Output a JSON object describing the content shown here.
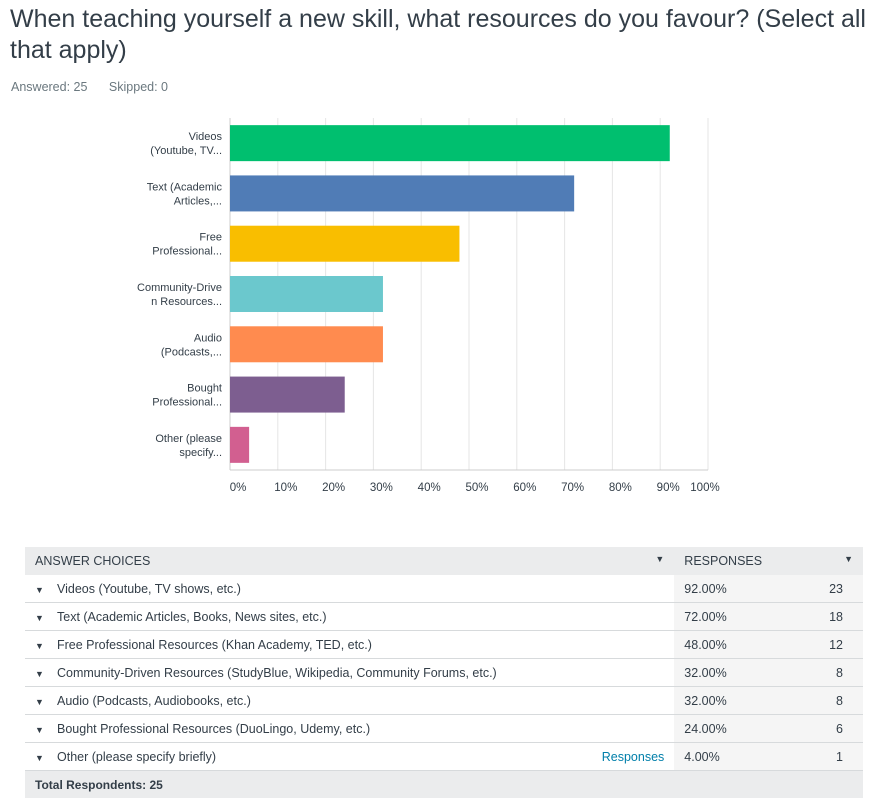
{
  "question": {
    "title": "When teaching yourself a new skill, what resources do you favour? (Select all that apply)",
    "answered": "Answered: 25",
    "skipped": "Skipped: 0"
  },
  "chart_data": {
    "type": "bar",
    "orientation": "horizontal",
    "title": "",
    "xlabel": "",
    "ylabel": "",
    "xlim": [
      0,
      100
    ],
    "grid": true,
    "x_ticks": [
      "0%",
      "10%",
      "20%",
      "30%",
      "40%",
      "50%",
      "60%",
      "70%",
      "80%",
      "90%",
      "100%"
    ],
    "categories": [
      [
        "Videos",
        "(Youtube, TV..."
      ],
      [
        "Text (Academic",
        "Articles,..."
      ],
      [
        "Free",
        "Professional..."
      ],
      [
        "Community-Drive",
        "n Resources..."
      ],
      [
        "Audio",
        "(Podcasts,..."
      ],
      [
        "Bought",
        "Professional..."
      ],
      [
        "Other (please",
        "specify..."
      ]
    ],
    "values": [
      92,
      72,
      48,
      32,
      32,
      24,
      4
    ],
    "colors": [
      "#00bf6f",
      "#507cb6",
      "#f9be00",
      "#6bc8cd",
      "#ff8b4f",
      "#7d5e90",
      "#d25f90"
    ]
  },
  "table": {
    "header_choices": "ANSWER CHOICES",
    "header_responses": "RESPONSES",
    "rows": [
      {
        "label": "Videos (Youtube, TV shows, etc.)",
        "pct": "92.00%",
        "count": "23",
        "link": ""
      },
      {
        "label": "Text (Academic Articles, Books, News sites, etc.)",
        "pct": "72.00%",
        "count": "18",
        "link": ""
      },
      {
        "label": "Free Professional Resources (Khan Academy, TED, etc.)",
        "pct": "48.00%",
        "count": "12",
        "link": ""
      },
      {
        "label": "Community-Driven Resources (StudyBlue, Wikipedia, Community Forums, etc.)",
        "pct": "32.00%",
        "count": "8",
        "link": ""
      },
      {
        "label": "Audio (Podcasts, Audiobooks, etc.)",
        "pct": "32.00%",
        "count": "8",
        "link": ""
      },
      {
        "label": "Bought Professional Resources (DuoLingo, Udemy, etc.)",
        "pct": "24.00%",
        "count": "6",
        "link": ""
      },
      {
        "label": "Other (please specify briefly)",
        "pct": "4.00%",
        "count": "1",
        "link": "Responses"
      }
    ],
    "total": "Total Respondents: 25"
  }
}
